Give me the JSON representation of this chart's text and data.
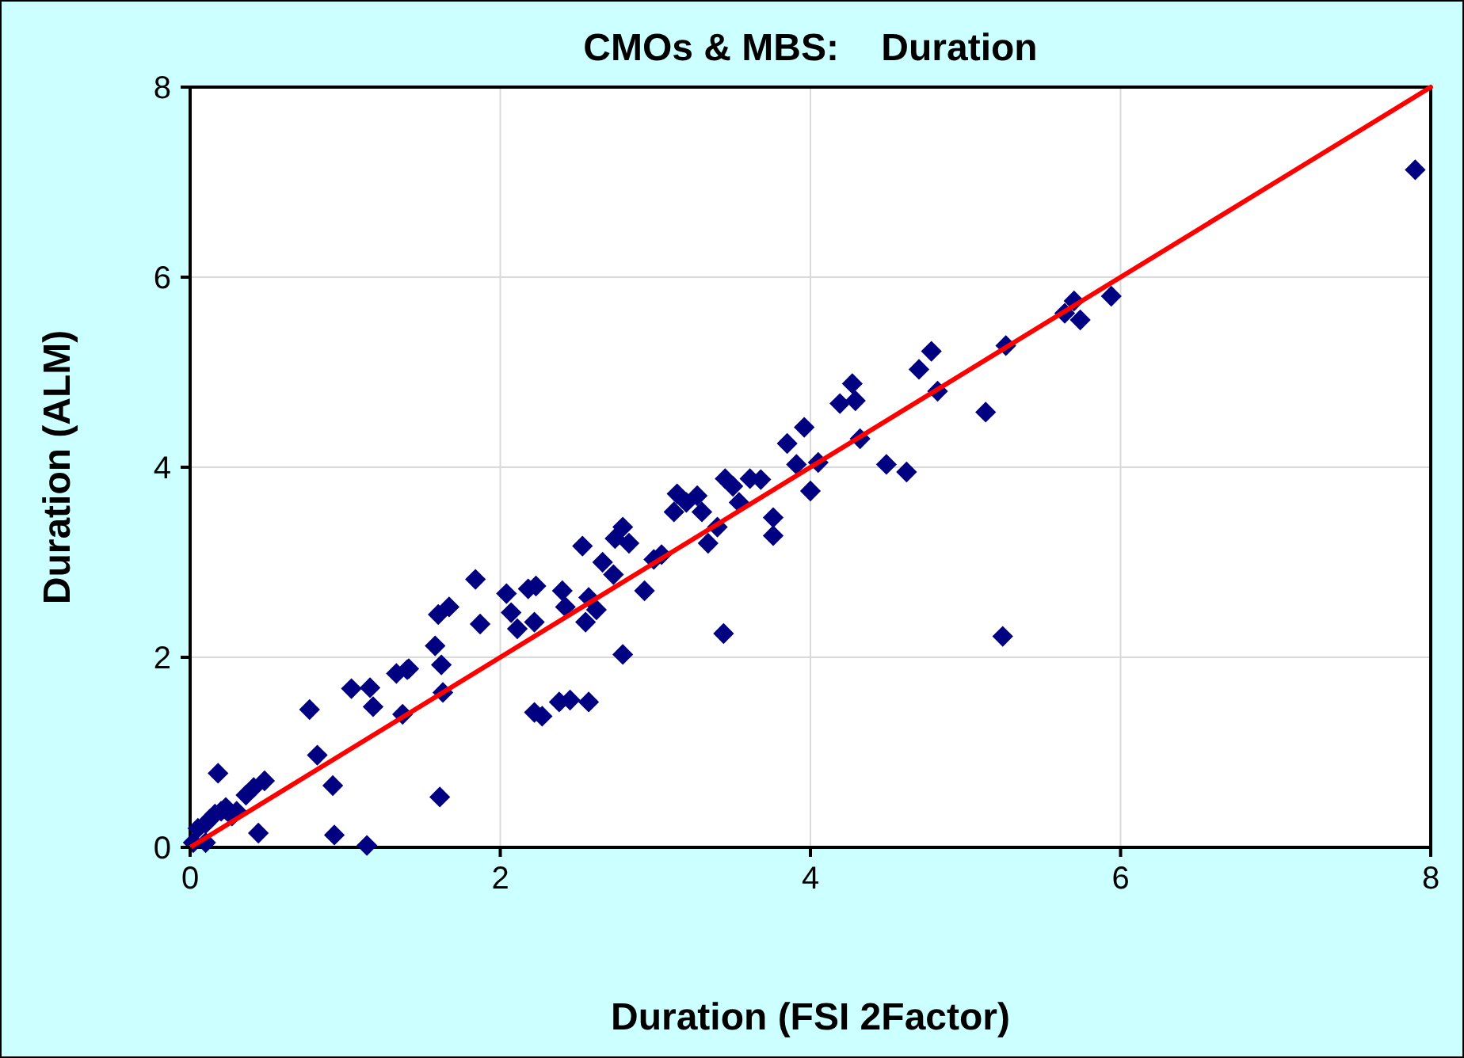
{
  "chart_data": {
    "type": "scatter",
    "title": "CMOs & MBS:    Duration",
    "xlabel": "Duration (FSI 2Factor)",
    "ylabel": "Duration (ALM)",
    "xlim": [
      0,
      8
    ],
    "ylim": [
      0,
      8
    ],
    "xticks": [
      0,
      2,
      4,
      6,
      8
    ],
    "yticks": [
      0,
      2,
      4,
      6,
      8
    ],
    "grid": true,
    "series": [
      {
        "marker": "diamond",
        "color": "#000080",
        "x": [
          0.02,
          0.1,
          0.13,
          0.16,
          0.2,
          0.23,
          0.27,
          0.3,
          0.18,
          0.44,
          0.36,
          0.41,
          0.48,
          0.1,
          0.05,
          0.77,
          0.82,
          0.92,
          0.93,
          1.04,
          1.14,
          1.16,
          1.18,
          1.33,
          1.4,
          1.37,
          1.41,
          1.58,
          1.6,
          1.62,
          1.63,
          1.61,
          1.67,
          1.84,
          1.87,
          2.04,
          2.07,
          2.11,
          2.18,
          2.23,
          2.22,
          2.22,
          2.27,
          2.38,
          2.45,
          2.57,
          2.4,
          2.42,
          2.53,
          2.57,
          2.62,
          2.55,
          2.66,
          2.74,
          2.79,
          2.83,
          2.73,
          2.79,
          2.93,
          2.99,
          3.04,
          3.14,
          3.12,
          3.2,
          3.27,
          3.3,
          3.34,
          3.4,
          3.44,
          3.45,
          3.5,
          3.54,
          3.61,
          3.68,
          3.76,
          3.76,
          3.85,
          3.91,
          3.96,
          4.0,
          4.05,
          4.19,
          4.27,
          4.32,
          4.29,
          4.49,
          4.62,
          4.7,
          4.78,
          4.82,
          5.13,
          5.26,
          5.24,
          5.64,
          5.7,
          5.74,
          5.94,
          7.9
        ],
        "values": [
          0.05,
          0.25,
          0.3,
          0.35,
          0.38,
          0.42,
          0.33,
          0.38,
          0.78,
          0.15,
          0.55,
          0.63,
          0.7,
          0.05,
          0.2,
          1.45,
          0.97,
          0.65,
          0.13,
          1.67,
          0.02,
          1.68,
          1.48,
          1.83,
          1.87,
          1.4,
          1.88,
          2.12,
          2.45,
          1.92,
          1.63,
          0.53,
          2.53,
          2.82,
          2.35,
          2.67,
          2.47,
          2.3,
          2.72,
          2.75,
          2.37,
          1.42,
          1.38,
          1.53,
          1.55,
          1.53,
          2.7,
          2.53,
          3.17,
          2.63,
          2.5,
          2.37,
          3.0,
          3.25,
          3.37,
          3.2,
          2.87,
          2.03,
          2.7,
          3.03,
          3.08,
          3.72,
          3.53,
          3.63,
          3.7,
          3.53,
          3.2,
          3.37,
          2.25,
          3.88,
          3.8,
          3.63,
          3.88,
          3.87,
          3.47,
          3.28,
          4.25,
          4.03,
          4.42,
          3.75,
          4.05,
          4.67,
          4.88,
          4.3,
          4.7,
          4.03,
          3.95,
          5.03,
          5.22,
          4.8,
          4.58,
          5.28,
          2.22,
          5.62,
          5.75,
          5.55,
          5.8,
          7.13
        ]
      },
      {
        "type": "line",
        "marker": "none",
        "line_style": "solid",
        "color": "#ff0000",
        "x": [
          0,
          1,
          2,
          3,
          4,
          5,
          6,
          7,
          8
        ],
        "values": [
          0,
          1,
          2,
          3,
          4,
          5,
          6,
          7,
          8
        ]
      }
    ]
  }
}
